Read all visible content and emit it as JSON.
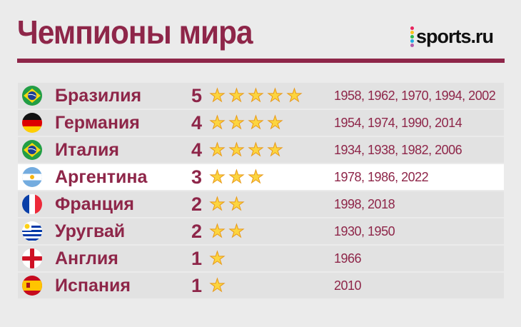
{
  "header": {
    "title": "Чемпионы мира",
    "logo": "sports.ru"
  },
  "colors": {
    "accent": "#8e2649",
    "star": "#fcd53f",
    "logo_dots": [
      "#e8245c",
      "#fcc21b",
      "#2db84b",
      "#21a9e1",
      "#b45dab"
    ]
  },
  "rows": [
    {
      "country": "Бразилия",
      "titles": "5",
      "stars": 5,
      "years": "1958, 1962, 1970, 1994, 2002",
      "flag": "brazil-flag-icon"
    },
    {
      "country": "Германия",
      "titles": "4",
      "stars": 4,
      "years": "1954, 1974, 1990, 2014",
      "flag": "germany-flag-icon"
    },
    {
      "country": "Италия",
      "titles": "4",
      "stars": 4,
      "years": "1934, 1938, 1982, 2006",
      "flag": "brazil-flag-icon"
    },
    {
      "country": "Аргентина",
      "titles": "3",
      "stars": 3,
      "years": "1978, 1986, 2022",
      "flag": "argentina-flag-icon",
      "highlighted": true
    },
    {
      "country": "Франция",
      "titles": "2",
      "stars": 2,
      "years": "1998, 2018",
      "flag": "france-flag-icon"
    },
    {
      "country": "Уругвай",
      "titles": "2",
      "stars": 2,
      "years": "1930, 1950",
      "flag": "uruguay-flag-icon"
    },
    {
      "country": "Англия",
      "titles": "1",
      "stars": 1,
      "years": "1966",
      "flag": "england-flag-icon"
    },
    {
      "country": "Испания",
      "titles": "1",
      "stars": 1,
      "years": "2010",
      "flag": "spain-flag-icon"
    }
  ]
}
